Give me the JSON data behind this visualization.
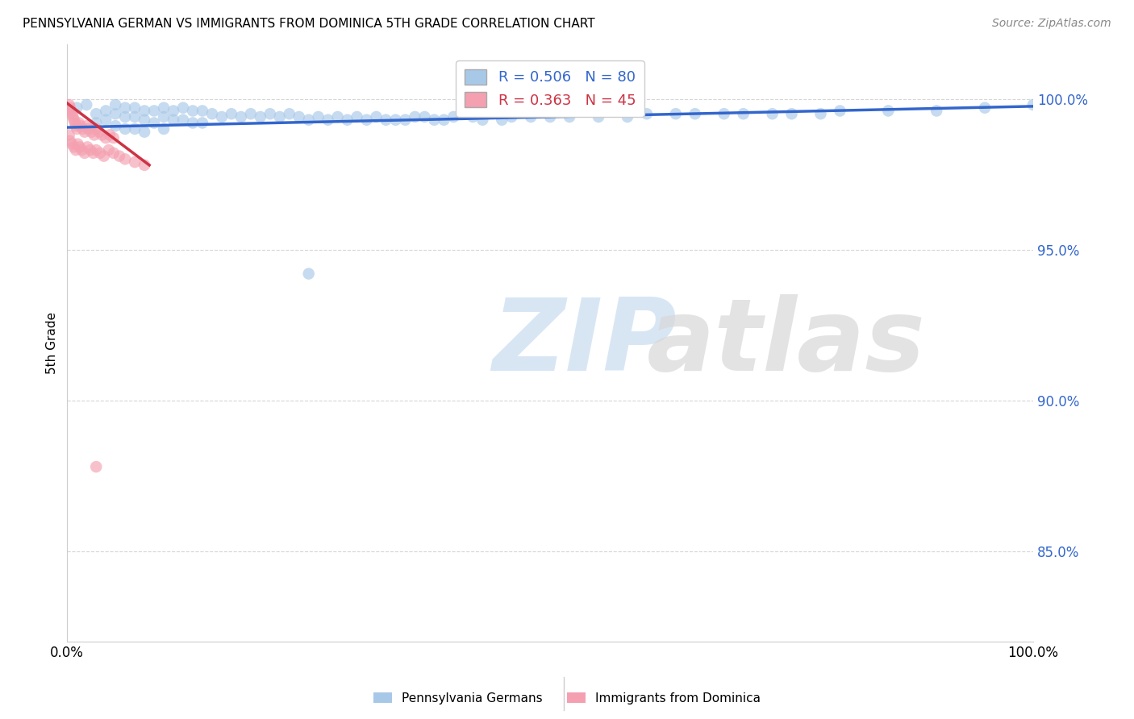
{
  "title": "PENNSYLVANIA GERMAN VS IMMIGRANTS FROM DOMINICA 5TH GRADE CORRELATION CHART",
  "source": "Source: ZipAtlas.com",
  "ylabel": "5th Grade",
  "blue_R": 0.506,
  "blue_N": 80,
  "pink_R": 0.363,
  "pink_N": 45,
  "blue_color": "#a8c8e8",
  "pink_color": "#f4a0b0",
  "blue_line_color": "#3366cc",
  "pink_line_color": "#cc3344",
  "xlim": [
    0.0,
    1.0
  ],
  "ylim": [
    0.82,
    1.018
  ],
  "yticks": [
    0.85,
    0.9,
    0.95,
    1.0
  ],
  "ytick_labels": [
    "85.0%",
    "90.0%",
    "95.0%",
    "100.0%"
  ],
  "blue_scatter_x": [
    0.01,
    0.02,
    0.03,
    0.03,
    0.04,
    0.04,
    0.05,
    0.05,
    0.05,
    0.06,
    0.06,
    0.06,
    0.07,
    0.07,
    0.07,
    0.08,
    0.08,
    0.08,
    0.09,
    0.09,
    0.1,
    0.1,
    0.1,
    0.11,
    0.11,
    0.12,
    0.12,
    0.13,
    0.13,
    0.14,
    0.14,
    0.15,
    0.16,
    0.17,
    0.18,
    0.19,
    0.2,
    0.21,
    0.22,
    0.23,
    0.24,
    0.25,
    0.26,
    0.28,
    0.3,
    0.32,
    0.34,
    0.36,
    0.38,
    0.4,
    0.43,
    0.46,
    0.5,
    0.55,
    0.6,
    0.65,
    0.7,
    0.75,
    0.8,
    0.85,
    0.9,
    0.95,
    1.0,
    0.25,
    0.27,
    0.29,
    0.31,
    0.33,
    0.35,
    0.37,
    0.39,
    0.42,
    0.45,
    0.48,
    0.52,
    0.58,
    0.63,
    0.68,
    0.73,
    0.78
  ],
  "blue_scatter_y": [
    0.997,
    0.998,
    0.995,
    0.992,
    0.996,
    0.993,
    0.998,
    0.995,
    0.991,
    0.997,
    0.994,
    0.99,
    0.997,
    0.994,
    0.99,
    0.996,
    0.993,
    0.989,
    0.996,
    0.992,
    0.997,
    0.994,
    0.99,
    0.996,
    0.993,
    0.997,
    0.993,
    0.996,
    0.992,
    0.996,
    0.992,
    0.995,
    0.994,
    0.995,
    0.994,
    0.995,
    0.994,
    0.995,
    0.994,
    0.995,
    0.994,
    0.993,
    0.994,
    0.994,
    0.994,
    0.994,
    0.993,
    0.994,
    0.993,
    0.994,
    0.993,
    0.994,
    0.994,
    0.994,
    0.995,
    0.995,
    0.995,
    0.995,
    0.996,
    0.996,
    0.996,
    0.997,
    0.998,
    0.942,
    0.993,
    0.993,
    0.993,
    0.993,
    0.993,
    0.994,
    0.993,
    0.994,
    0.993,
    0.994,
    0.994,
    0.994,
    0.995,
    0.995,
    0.995,
    0.995
  ],
  "pink_scatter_x": [
    0.002,
    0.003,
    0.004,
    0.005,
    0.006,
    0.007,
    0.008,
    0.009,
    0.01,
    0.012,
    0.014,
    0.016,
    0.018,
    0.02,
    0.022,
    0.025,
    0.028,
    0.03,
    0.033,
    0.036,
    0.04,
    0.044,
    0.048,
    0.002,
    0.003,
    0.005,
    0.007,
    0.009,
    0.011,
    0.013,
    0.015,
    0.018,
    0.021,
    0.024,
    0.027,
    0.03,
    0.034,
    0.038,
    0.043,
    0.048,
    0.054,
    0.06,
    0.07,
    0.08,
    0.03
  ],
  "pink_scatter_y": [
    0.998,
    0.997,
    0.996,
    0.995,
    0.994,
    0.993,
    0.992,
    0.991,
    0.99,
    0.992,
    0.991,
    0.99,
    0.989,
    0.991,
    0.99,
    0.989,
    0.988,
    0.99,
    0.989,
    0.988,
    0.987,
    0.988,
    0.987,
    0.988,
    0.986,
    0.985,
    0.984,
    0.983,
    0.985,
    0.984,
    0.983,
    0.982,
    0.984,
    0.983,
    0.982,
    0.983,
    0.982,
    0.981,
    0.983,
    0.982,
    0.981,
    0.98,
    0.979,
    0.978,
    0.878
  ],
  "blue_trendline_x": [
    0.0,
    1.0
  ],
  "blue_trendline_y": [
    0.9905,
    0.9975
  ],
  "pink_trendline_x": [
    0.0,
    0.085
  ],
  "pink_trendline_y": [
    0.9985,
    0.978
  ]
}
